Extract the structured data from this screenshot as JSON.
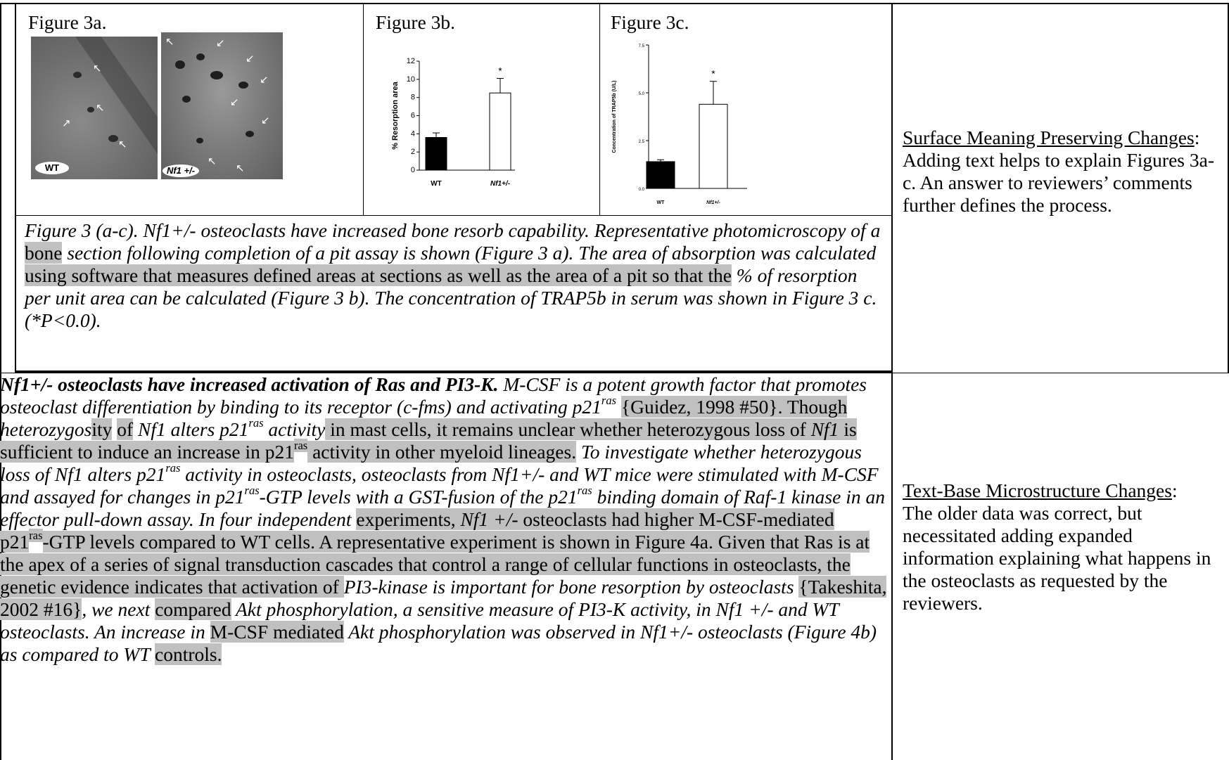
{
  "figures": {
    "fig3a": {
      "label": "Figure 3a.",
      "photo_wt_label": "WT",
      "photo_nf1_label": "Nf1 +/-"
    },
    "fig3b": {
      "label": "Figure 3b.",
      "chart_data": {
        "type": "bar",
        "categories": [
          "WT",
          "Nf1+/-"
        ],
        "values": [
          3.6,
          8.5
        ],
        "error": [
          0.5,
          1.6
        ],
        "colors": [
          "#000000",
          "#ffffff"
        ],
        "ylabel": "% Resorption area",
        "ylim": [
          0,
          12
        ],
        "yticks": [
          "0",
          "2",
          "4",
          "6",
          "8",
          "10",
          "12"
        ],
        "annotation": "*"
      }
    },
    "fig3c": {
      "label": "Figure 3c.",
      "chart_data": {
        "type": "bar",
        "categories": [
          "WT",
          "Nf1+/-"
        ],
        "values": [
          1.4,
          4.4
        ],
        "error": [
          0.1,
          1.2
        ],
        "colors": [
          "#000000",
          "#ffffff"
        ],
        "ylabel": "Concentration of TRAP5b (U/L)",
        "ylim": [
          0,
          7.5
        ],
        "yticks": [
          "0.0",
          "2.5",
          "5.0",
          "7.5"
        ],
        "annotation": "*"
      }
    }
  },
  "caption_segments": [
    "Figure 3 (a-c). Nf1+/- osteoclasts have increased bone resorb capability.  Representative photomicroscopy of a ",
    "bone",
    " section following completion of a pit assay is shown (Figure 3 a). The area of absorption was calculated ",
    "using software that measures defined areas at sections as well as the area of a pit so that the",
    " % of resorption per unit area can be calculated (Figure 3 b).  The concentration of TRAP5b in serum was shown in Figure 3 c. (*P<0.0)."
  ],
  "note1": {
    "heading": "Surface Meaning Preserving Changes",
    "body": ": Adding text helps to explain Figures 3a-c. An answer to reviewers’ comments further defines the process."
  },
  "note2": {
    "heading": "Text-Base Microstructure Changes",
    "heading_suffix": ":",
    "body": "The older data was correct, but necessitated adding expanded information explaining what happens in the osteoclasts as requested by the reviewers."
  },
  "paragraph": {
    "s01": "Nf1+/- osteoclasts have increased activation of Ras and PI3-K.",
    "s02": " M-CSF is a potent growth factor that promotes osteoclast differentiation by binding to its receptor (c-fms) and activating p21",
    "s03": "ras",
    "s04": " ",
    "s05": "{Guidez, 1998 #50}",
    "s06": ". Though ",
    "s07": "heterozygos",
    "s08": "ity",
    "s09": " ",
    "s10": "of",
    "s11": " ",
    "s12": "Nf1 alters p21",
    "s13": "ras",
    "s14": " activity",
    "s15": " in mast cells, it remains unclear whether heterozygous loss of ",
    "s16": "Nf1",
    "s17": " is sufficient to induce an increase in p21",
    "s18": "ras",
    "s19": " activity in other myeloid lineages.",
    "s20": " To investigate whether heterozygous loss of Nf1 alters p21",
    "s21": "ras",
    "s22": " activity in osteoclasts, osteoclasts from Nf1+/- and WT mice were stimulated with M-CSF and assayed for changes in p21",
    "s23": "ras",
    "s24": "-GTP levels with a GST-fusion of the p21",
    "s25": "ras",
    "s26": " binding domain of Raf-1 kinase in an effector pull-down assay. In four independent ",
    "s27": "experiments, ",
    "s28": "Nf1 +/-",
    "s29": " osteoclasts had higher M-CSF-mediated p21",
    "s30": "ras",
    "s31": "-GTP levels compared to WT cells.  A representative experiment is shown in Figure 4a. Given that Ras is at the apex of a series of signal transduction cascades that control a range of cellular functions in osteoclasts, the genetic evidence indicates that activation of ",
    "s32": "PI3-kinase is important for bone resorption by osteoclasts",
    "s33": " ",
    "s34": "{Takeshita, 2002 #16}",
    "s35": ", we next ",
    "s36": "compared",
    "s37": " Akt phosphorylation, a sensitive measure of PI3-K activity, in Nf1 +/- and WT osteoclasts. An increase in ",
    "s38": "M-CSF mediated",
    "s39": " Akt phosphorylation was observed in Nf1+/- osteoclasts (Figure 4b) as compared to WT ",
    "s40": "controls."
  }
}
